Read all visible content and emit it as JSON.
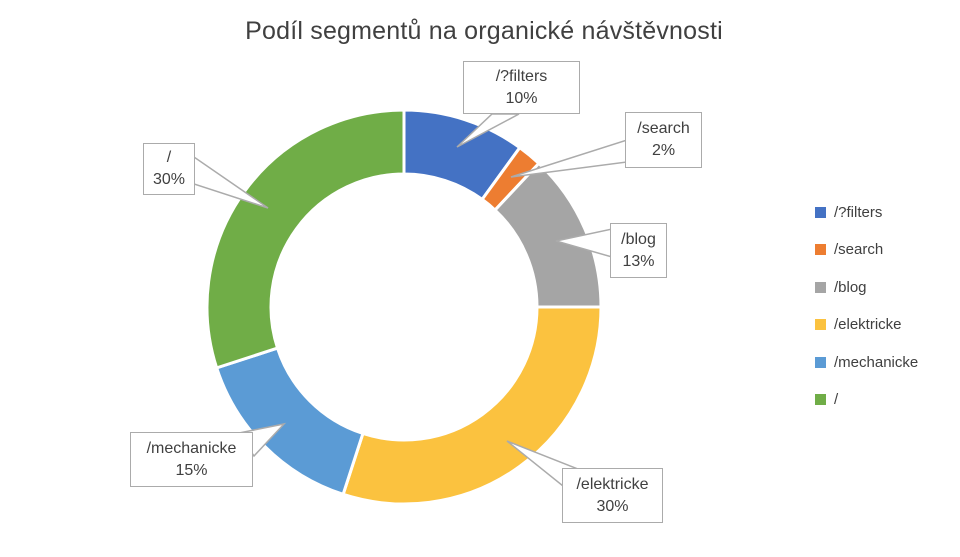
{
  "title": "Podíl segmentů na organické návštěvnosti",
  "colors": {
    "title_text": "#404040",
    "label_text": "#404040",
    "callout_border": "#ABABAB",
    "background": "#FFFFFF"
  },
  "chart_data": {
    "type": "pie",
    "subtype": "donut",
    "title": "Podíl segmentů na organické návštěvnosti",
    "categories": [
      "/?filters",
      "/search",
      "/blog",
      "/elektricke",
      "/mechanicke",
      "/"
    ],
    "values": [
      10,
      2,
      13,
      30,
      15,
      30
    ],
    "unit": "%",
    "value_labels": [
      "10%",
      "2%",
      "13%",
      "30%",
      "15%",
      "30%"
    ],
    "colors": [
      "#4472C4",
      "#ED7D31",
      "#A5A5A5",
      "#FBC23F",
      "#5B9BD5",
      "#70AD47"
    ],
    "start_angle_deg": 0,
    "direction": "clockwise",
    "donut_hole_ratio": 0.675,
    "legend_position": "right",
    "data_label_style": "callout boxes with category and percent, leader lines to slices",
    "grid": "off"
  }
}
